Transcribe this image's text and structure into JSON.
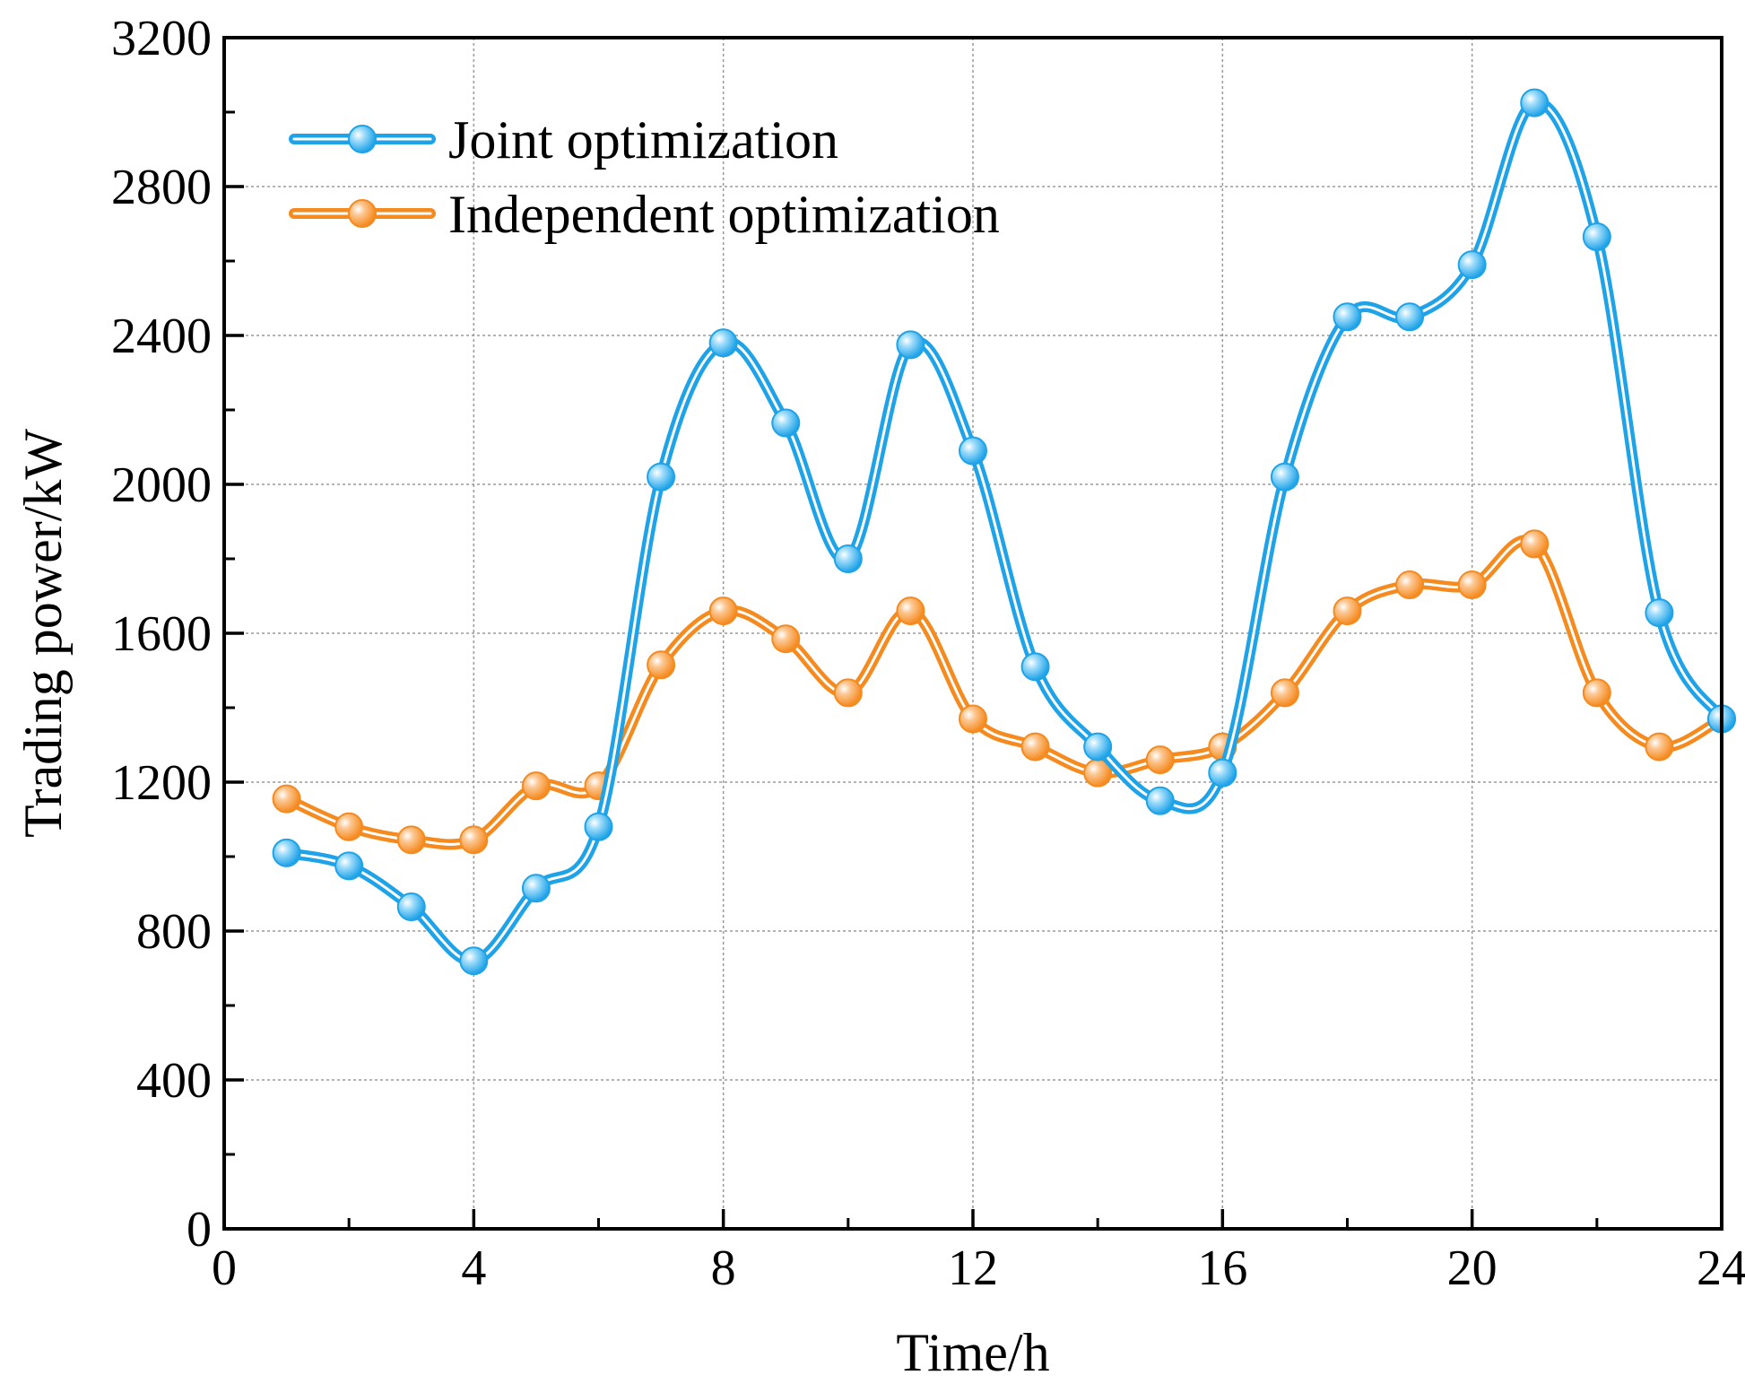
{
  "chart_data": {
    "type": "line",
    "title": "",
    "xlabel": "Time/h",
    "ylabel": "Trading power/kW",
    "xlim": [
      0,
      24
    ],
    "ylim": [
      0,
      3200
    ],
    "xticks": [
      0,
      4,
      8,
      12,
      16,
      20,
      24
    ],
    "yticks": [
      0,
      400,
      800,
      1200,
      1600,
      2000,
      2400,
      2800,
      3200
    ],
    "xtick_labels": [
      "0",
      "4",
      "8",
      "12",
      "16",
      "20",
      "24"
    ],
    "ytick_labels": [
      "0",
      "400",
      "800",
      "1200",
      "1600",
      "2000",
      "2400",
      "2800",
      "3200"
    ],
    "grid": true,
    "legend_position": "top-left",
    "x": [
      1,
      2,
      3,
      4,
      5,
      6,
      7,
      8,
      9,
      10,
      11,
      12,
      13,
      14,
      15,
      16,
      17,
      18,
      19,
      20,
      21,
      22,
      23,
      24
    ],
    "series": [
      {
        "name": "Joint optimization",
        "color": "#1fa3e8",
        "values": [
          1010,
          975,
          865,
          720,
          915,
          1080,
          2020,
          2380,
          2165,
          1800,
          2375,
          2090,
          1510,
          1295,
          1150,
          1225,
          2020,
          2450,
          2450,
          2590,
          3025,
          2665,
          1655,
          1370
        ]
      },
      {
        "name": "Independent optimization",
        "color": "#f58a1f",
        "values": [
          1155,
          1080,
          1045,
          1045,
          1190,
          1190,
          1515,
          1660,
          1585,
          1440,
          1660,
          1370,
          1295,
          1225,
          1260,
          1295,
          1440,
          1660,
          1730,
          1730,
          1840,
          1440,
          1295,
          1370
        ]
      }
    ]
  }
}
